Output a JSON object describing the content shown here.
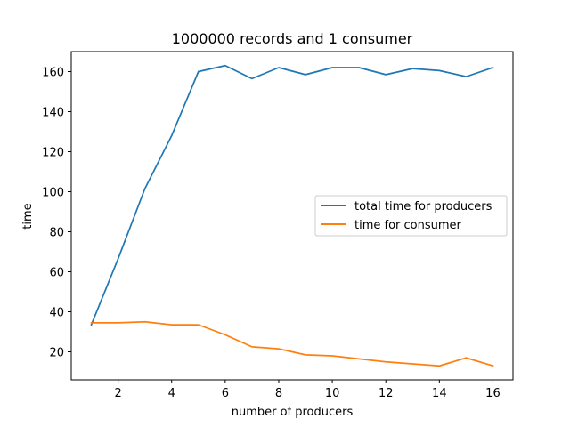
{
  "chart_data": {
    "type": "line",
    "title": "1000000 records and 1 consumer",
    "xlabel": "number of producers",
    "ylabel": "time",
    "xlim": [
      0.25,
      16.75
    ],
    "ylim": [
      6,
      170
    ],
    "xticks": [
      2,
      4,
      6,
      8,
      10,
      12,
      14,
      16
    ],
    "yticks": [
      20,
      40,
      60,
      80,
      100,
      120,
      140,
      160
    ],
    "grid": false,
    "legend_position": "center-right",
    "x": [
      1,
      2,
      3,
      4,
      5,
      6,
      7,
      8,
      9,
      10,
      11,
      12,
      13,
      14,
      15,
      16
    ],
    "series": [
      {
        "name": "total time for producers",
        "color": "#1f77b4",
        "values": [
          33.5,
          66.5,
          101.5,
          128,
          160,
          163,
          156.5,
          162,
          158.5,
          162,
          162,
          158.5,
          161.5,
          160.5,
          157.5,
          162
        ]
      },
      {
        "name": "time for consumer",
        "color": "#ff7f0e",
        "values": [
          34.5,
          34.5,
          35,
          33.5,
          33.5,
          28.5,
          22.5,
          21.5,
          18.5,
          18,
          16.5,
          15,
          14,
          13,
          17,
          13
        ]
      }
    ]
  }
}
